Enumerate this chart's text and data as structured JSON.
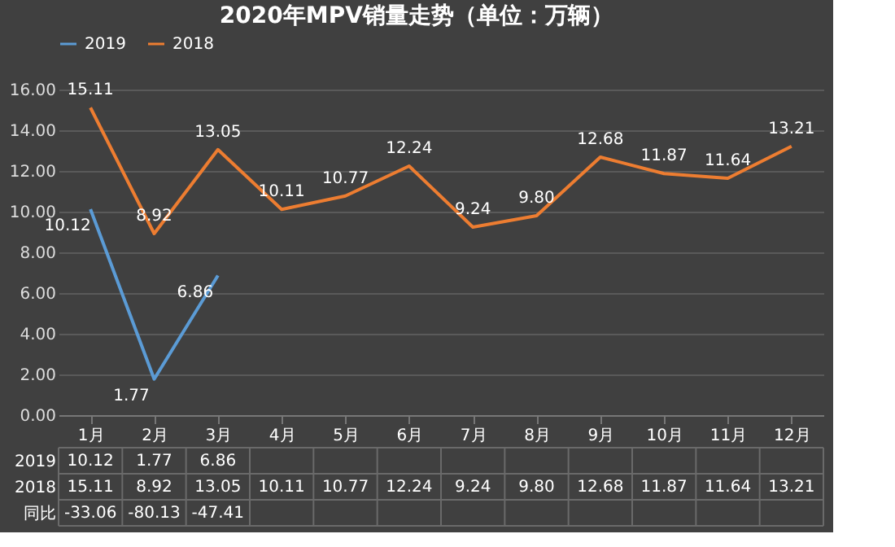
{
  "chart_data": {
    "type": "line",
    "title": "2020年MPV销量走势（单位：万辆）",
    "categories": [
      "1月",
      "2月",
      "3月",
      "4月",
      "5月",
      "6月",
      "7月",
      "8月",
      "9月",
      "10月",
      "11月",
      "12月"
    ],
    "series": [
      {
        "name": "2019",
        "color": "#5b9bd5",
        "values": [
          10.12,
          1.77,
          6.86,
          null,
          null,
          null,
          null,
          null,
          null,
          null,
          null,
          null
        ],
        "value_labels": [
          "10.12",
          "1.77",
          "6.86",
          null,
          null,
          null,
          null,
          null,
          null,
          null,
          null,
          null
        ]
      },
      {
        "name": "2018",
        "color": "#ed7d31",
        "values": [
          15.11,
          8.92,
          13.05,
          10.11,
          10.77,
          12.24,
          9.24,
          9.8,
          12.68,
          11.87,
          11.64,
          13.21
        ],
        "value_labels": [
          "15.11",
          "8.92",
          "13.05",
          "10.11",
          "10.77",
          "12.24",
          "9.24",
          "9.80",
          "12.68",
          "11.87",
          "11.64",
          "13.21"
        ]
      }
    ],
    "ylim": [
      0,
      16
    ],
    "yticks": [
      {
        "value": 0,
        "label": "0.00"
      },
      {
        "value": 2,
        "label": "2.00"
      },
      {
        "value": 4,
        "label": "4.00"
      },
      {
        "value": 6,
        "label": "6.00"
      },
      {
        "value": 8,
        "label": "8.00"
      },
      {
        "value": 10,
        "label": "10.00"
      },
      {
        "value": 12,
        "label": "12.00"
      },
      {
        "value": 14,
        "label": "14.00"
      },
      {
        "value": 16,
        "label": "16.00"
      }
    ],
    "grid": "y",
    "legend": "top",
    "marker": "none",
    "line_style": "solid",
    "annotations": [
      "同比",
      "-33.06",
      "-80.13",
      "-47.41"
    ]
  }
}
